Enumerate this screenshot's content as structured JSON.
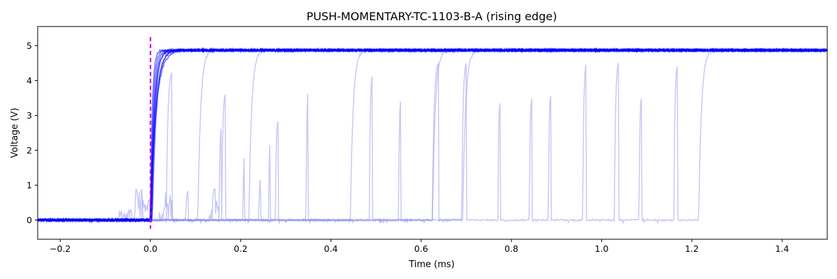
{
  "chart_data": {
    "type": "line",
    "title": "PUSH-MOMENTARY-TC-1103-B-A (rising edge)",
    "xlabel": "Time (ms)",
    "ylabel": "Voltage (V)",
    "xlim": [
      -0.25,
      1.5
    ],
    "ylim": [
      -0.55,
      5.55
    ],
    "x_ticks": [
      -0.2,
      0.0,
      0.2,
      0.4,
      0.6,
      0.8,
      1.0,
      1.2,
      1.4
    ],
    "x_tick_labels": [
      "−0.2",
      "0.0",
      "0.2",
      "0.4",
      "0.6",
      "0.8",
      "1.0",
      "1.2",
      "1.4"
    ],
    "y_ticks": [
      0,
      1,
      2,
      3,
      4,
      5
    ],
    "y_tick_labels": [
      "0",
      "1",
      "2",
      "3",
      "4",
      "5"
    ],
    "grid": false,
    "trigger_time": 0.0,
    "trigger_color": "#cc00cc",
    "trace_color": "#0000ff",
    "faint_trace_color": "#8888ee",
    "low_level": 0.0,
    "high_level": 4.87,
    "main_traces": [
      {
        "rise_time": 0.0,
        "tau": 0.004
      },
      {
        "rise_time": 0.001,
        "tau": 0.005
      },
      {
        "rise_time": 0.002,
        "tau": 0.006
      },
      {
        "rise_time": 0.0,
        "tau": 0.008
      },
      {
        "rise_time": 0.003,
        "tau": 0.007
      },
      {
        "rise_time": 0.001,
        "tau": 0.01
      },
      {
        "rise_time": 0.004,
        "tau": 0.009
      },
      {
        "rise_time": 0.0,
        "tau": 0.012
      }
    ],
    "bounce_traces": [
      {
        "final_rise": 0.105,
        "pre_noise": [
          [
            -0.07,
            -0.04,
            0.3
          ],
          [
            -0.035,
            -0.015,
            0.9
          ]
        ],
        "pulses": [
          [
            0.018,
            0.014,
            1.5
          ],
          [
            0.035,
            0.048,
            4.25
          ],
          [
            0.078,
            0.084,
            0.85
          ]
        ]
      },
      {
        "final_rise": 0.218,
        "pre_noise": [
          [
            -0.02,
            0.0,
            0.6
          ],
          [
            0.13,
            0.155,
            0.9
          ]
        ],
        "pulses": [
          [
            0.152,
            0.158,
            2.7
          ],
          [
            0.158,
            0.166,
            3.62
          ],
          [
            0.205,
            0.209,
            1.9
          ]
        ]
      },
      {
        "final_rise": 0.443,
        "pre_noise": [
          [
            0.02,
            0.05,
            0.85
          ]
        ],
        "pulses": [
          [
            0.24,
            0.245,
            1.2
          ],
          [
            0.262,
            0.266,
            2.3
          ],
          [
            0.277,
            0.283,
            2.85
          ],
          [
            0.345,
            0.35,
            3.78
          ]
        ]
      },
      {
        "final_rise": 0.625,
        "pre_noise": [],
        "pulses": [
          [
            0.485,
            0.492,
            4.18
          ],
          [
            0.55,
            0.555,
            3.48
          ]
        ]
      },
      {
        "final_rise": 0.692,
        "pre_noise": [],
        "pulses": [
          [
            0.625,
            0.638,
            4.5
          ]
        ]
      },
      {
        "final_rise": 1.215,
        "pre_noise": [],
        "pulses": [
          [
            0.69,
            0.7,
            4.5
          ],
          [
            0.77,
            0.775,
            3.38
          ],
          [
            0.84,
            0.845,
            3.47
          ],
          [
            0.882,
            0.887,
            3.55
          ],
          [
            0.958,
            0.966,
            4.5
          ],
          [
            1.028,
            1.038,
            4.55
          ],
          [
            1.083,
            1.088,
            3.47
          ],
          [
            1.16,
            1.168,
            4.42
          ]
        ]
      }
    ]
  }
}
